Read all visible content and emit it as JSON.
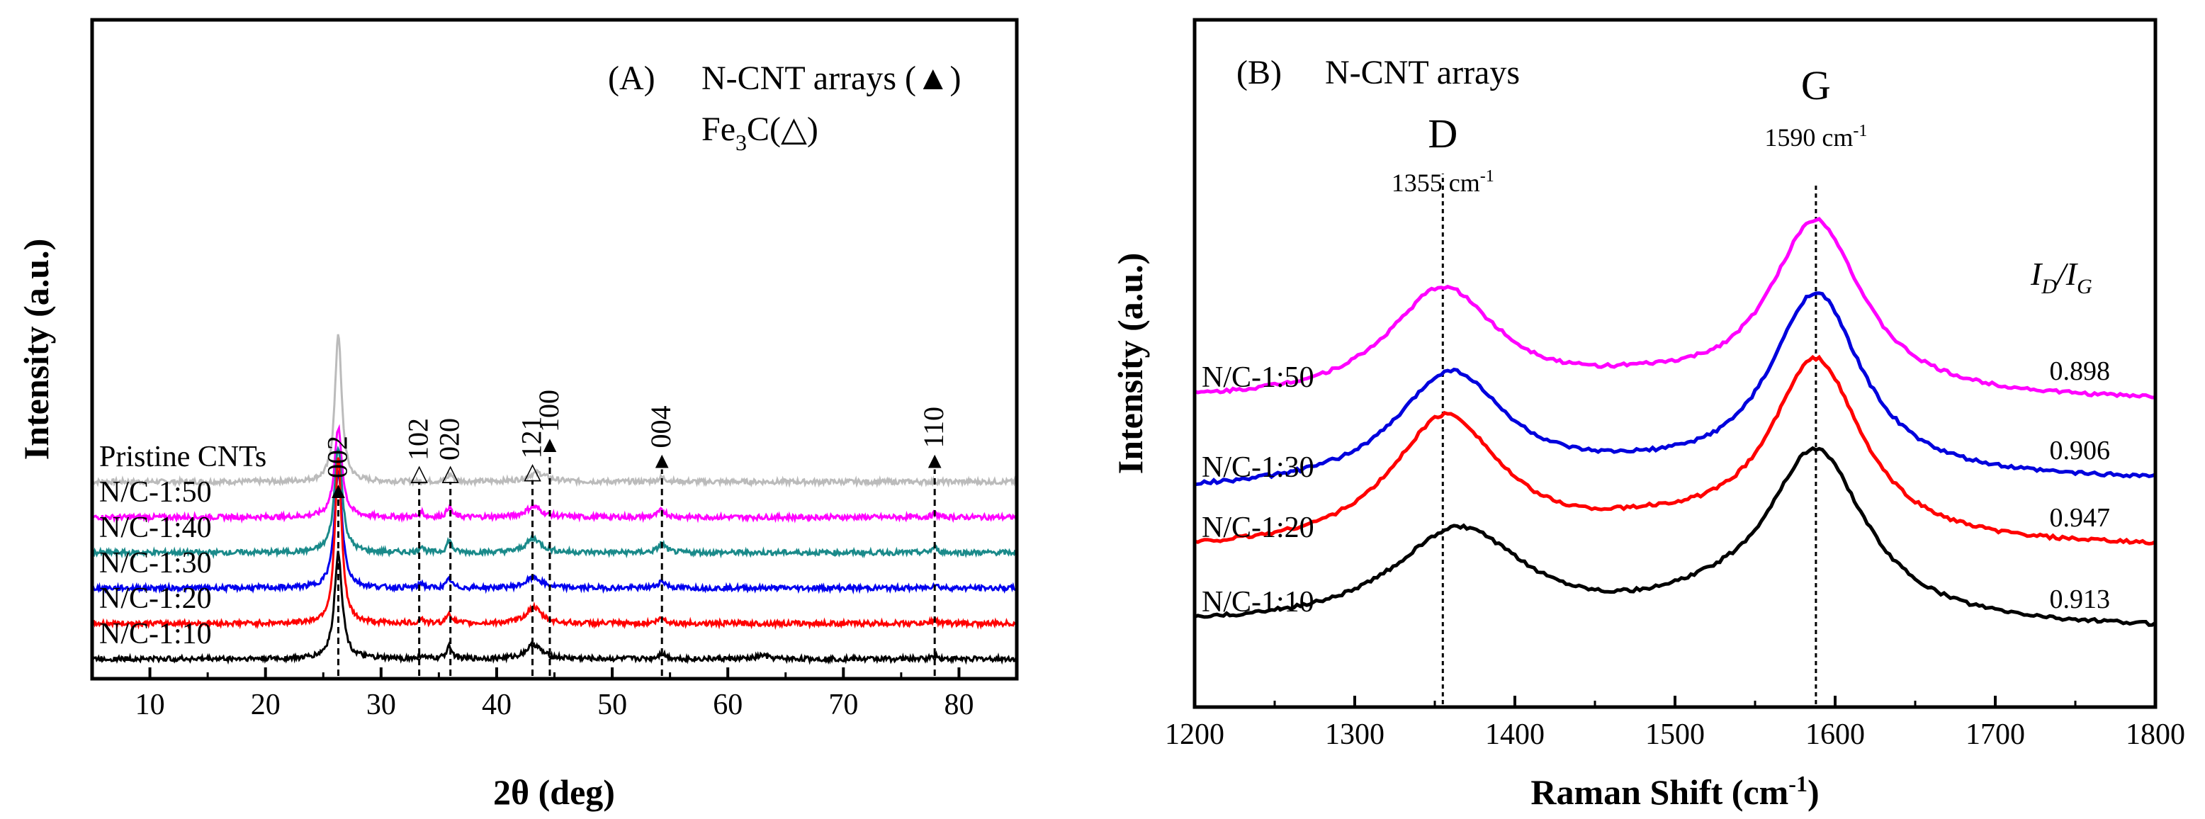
{
  "chart_data": [
    {
      "type": "line",
      "panel_label": "(A)",
      "title": "N-CNT arrays (▲)",
      "title2_base": "Fe",
      "title2_sub": "3",
      "title2_tail": "C(△)",
      "xlabel": "2θ (deg)",
      "ylabel": "Intensity (a.u.)",
      "xlim": [
        5,
        85
      ],
      "xticks": [
        "10",
        "20",
        "30",
        "40",
        "50",
        "60",
        "70",
        "80"
      ],
      "series": [
        {
          "name": "Pristine CNTs",
          "color": "#bbbbbb",
          "offset": 5,
          "peaks": [
            [
              26.3,
              4.2,
              0.35
            ],
            [
              36.0,
              0.2,
              0.3
            ],
            [
              43.5,
              0.25,
              1.0
            ],
            [
              54.3,
              0.12,
              0.4
            ]
          ]
        },
        {
          "name": "N/C-1:50",
          "color": "#ff00ff",
          "offset": 4,
          "peaks": [
            [
              26.3,
              2.5,
              0.4
            ],
            [
              33.5,
              0.15,
              0.2
            ],
            [
              35.9,
              0.3,
              0.25
            ],
            [
              43.2,
              0.3,
              0.8
            ],
            [
              54.3,
              0.2,
              0.4
            ],
            [
              77.9,
              0.1,
              0.3
            ]
          ]
        },
        {
          "name": "N/C-1:40",
          "color": "#1a8a8a",
          "offset": 3,
          "peaks": [
            [
              26.3,
              3.0,
              0.4
            ],
            [
              33.5,
              0.2,
              0.2
            ],
            [
              35.9,
              0.35,
              0.25
            ],
            [
              43.2,
              0.4,
              0.8
            ],
            [
              54.3,
              0.25,
              0.4
            ],
            [
              77.9,
              0.15,
              0.3
            ]
          ]
        },
        {
          "name": "N/C-1:30",
          "color": "#0000ee",
          "offset": 2,
          "peaks": [
            [
              26.3,
              3.3,
              0.4
            ],
            [
              33.5,
              0.15,
              0.2
            ],
            [
              35.9,
              0.25,
              0.25
            ],
            [
              43.2,
              0.3,
              0.8
            ],
            [
              54.3,
              0.2,
              0.4
            ],
            [
              77.9,
              0.1,
              0.3
            ]
          ]
        },
        {
          "name": "N/C-1:20",
          "color": "#ff0000",
          "offset": 1,
          "peaks": [
            [
              26.3,
              4.7,
              0.35
            ],
            [
              33.5,
              0.15,
              0.2
            ],
            [
              35.9,
              0.3,
              0.25
            ],
            [
              43.2,
              0.45,
              0.8
            ],
            [
              54.3,
              0.15,
              0.4
            ],
            [
              77.9,
              0.1,
              0.3
            ]
          ]
        },
        {
          "name": "N/C-1:10",
          "color": "#000000",
          "offset": 0,
          "peaks": [
            [
              26.3,
              3.0,
              0.4
            ],
            [
              33.5,
              0.1,
              0.2
            ],
            [
              35.9,
              0.4,
              0.25
            ],
            [
              43.2,
              0.4,
              0.8
            ],
            [
              54.3,
              0.15,
              0.4
            ],
            [
              63.0,
              0.1,
              0.5
            ],
            [
              77.9,
              0.1,
              0.3
            ]
          ]
        }
      ],
      "reference_lines": [
        {
          "x": 26.3,
          "label": "002",
          "symbol": "▲",
          "top": 4.5
        },
        {
          "x": 33.3,
          "label": "102",
          "symbol": "△",
          "top": 5.0
        },
        {
          "x": 36.0,
          "label": "020",
          "symbol": "△",
          "top": 5.0
        },
        {
          "x": 43.1,
          "label": "121",
          "symbol": "△",
          "top": 5.05
        },
        {
          "x": 44.6,
          "label": "100",
          "symbol": "▲",
          "top": 5.8
        },
        {
          "x": 54.3,
          "label": "004",
          "symbol": "▲",
          "top": 5.35
        },
        {
          "x": 77.9,
          "label": "110",
          "symbol": "▲",
          "top": 5.35
        }
      ]
    },
    {
      "type": "line",
      "panel_label": "(B)",
      "title": "N-CNT arrays",
      "xlabel_base": "Raman Shift (cm",
      "xlabel_sup": "-1",
      "xlabel_tail": ")",
      "ylabel": "Intensity (a.u.)",
      "xlim": [
        1200,
        1800
      ],
      "xticks": [
        "1200",
        "1300",
        "1400",
        "1500",
        "1600",
        "1700",
        "1800"
      ],
      "ratio_label_base": "I",
      "ratio_label_sub1": "D",
      "ratio_label_sep": "/I",
      "ratio_label_sub2": "G",
      "d_band": {
        "letter": "D",
        "position_label": "1355 cm",
        "position_sup": "-1",
        "x": 1355
      },
      "g_band": {
        "letter": "G",
        "position_label": "1590 cm",
        "position_sup": "-1",
        "x": 1588
      },
      "series": [
        {
          "name": "N/C-1:50",
          "color": "#ff00ff",
          "ratio": "0.898",
          "offset": 3.2,
          "base0": 0.12,
          "slope": 0.0,
          "peaks": [
            [
              1355,
              1.55,
              42
            ],
            [
              1588,
              2.5,
              35
            ],
            [
              1480,
              0.15,
              60
            ]
          ]
        },
        {
          "name": "N/C-1:30",
          "color": "#0000dd",
          "ratio": "0.906",
          "offset": 2.05,
          "base0": 0.0,
          "slope": 0.15,
          "peaks": [
            [
              1360,
              1.6,
              42
            ],
            [
              1588,
              2.65,
              35
            ],
            [
              1480,
              0.1,
              60
            ]
          ]
        },
        {
          "name": "N/C-1:20",
          "color": "#ff0000",
          "ratio": "0.947",
          "offset": 1.05,
          "base0": 0.15,
          "slope": 0.05,
          "peaks": [
            [
              1357,
              1.85,
              42
            ],
            [
              1588,
              2.6,
              35
            ],
            [
              1490,
              0.2,
              60
            ]
          ]
        },
        {
          "name": "N/C-1:10",
          "color": "#000000",
          "ratio": "0.913",
          "offset": 0.0,
          "base0": 0.15,
          "slope": -0.05,
          "peaks": [
            [
              1365,
              1.35,
              50
            ],
            [
              1588,
              2.45,
              38
            ],
            [
              1520,
              0.15,
              40
            ]
          ]
        }
      ]
    }
  ]
}
